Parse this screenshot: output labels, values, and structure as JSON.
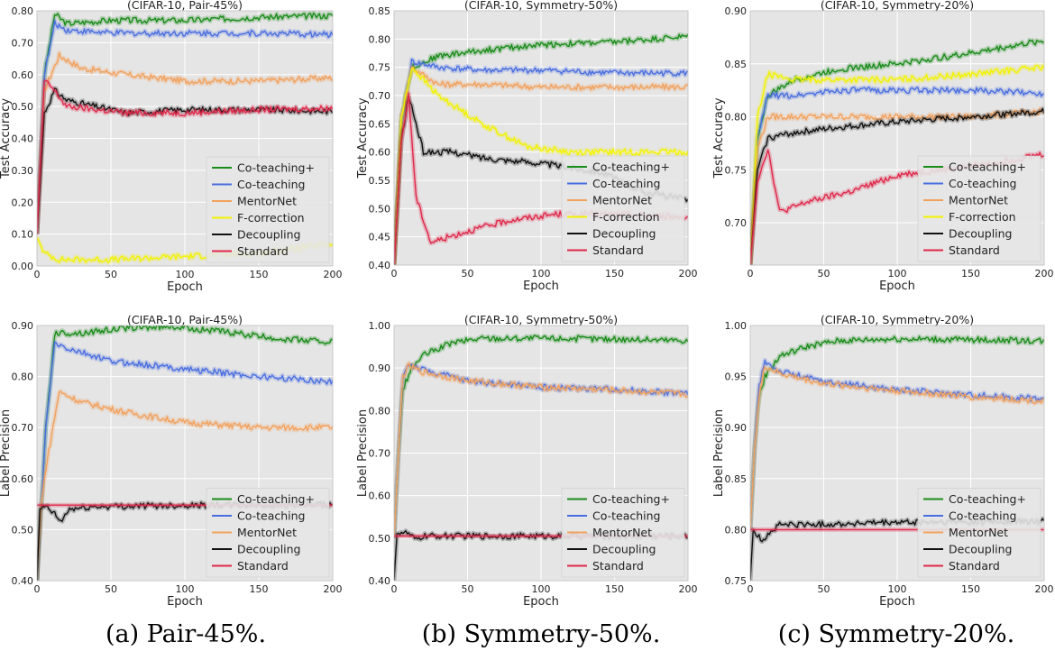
{
  "colors": {
    "Co-teaching+": "#1a8c1a",
    "Co-teaching": "#4a6ee0",
    "MentorNet": "#f2a15c",
    "F-correction": "#f2f200",
    "Decoupling": "#111111",
    "Standard": "#e0284a",
    "plot_bg": "#e5e5e5",
    "grid": "#ffffff"
  },
  "captions": [
    "(a) Pair-45%.",
    "(b) Symmetry-50%.",
    "(c) Symmetry-20%."
  ],
  "chart_data": [
    {
      "type": "line",
      "title": "(CIFAR-10, Pair-45%)",
      "xlabel": "Epoch",
      "ylabel": "Test Accuracy",
      "xlim": [
        0,
        200
      ],
      "ylim": [
        0.0,
        0.8
      ],
      "xticks": [
        "0",
        "50",
        "100",
        "150",
        "200"
      ],
      "yticks": [
        "0.00",
        "0.10",
        "0.20",
        "0.30",
        "0.40",
        "0.50",
        "0.60",
        "0.70",
        "0.80"
      ],
      "legend": "lower-right",
      "series": [
        {
          "name": "Co-teaching+",
          "x": [
            0,
            5,
            12,
            20,
            50,
            100,
            150,
            200
          ],
          "y": [
            0.1,
            0.6,
            0.79,
            0.76,
            0.77,
            0.77,
            0.78,
            0.785
          ]
        },
        {
          "name": "Co-teaching",
          "x": [
            0,
            5,
            12,
            20,
            50,
            100,
            150,
            200
          ],
          "y": [
            0.1,
            0.6,
            0.76,
            0.74,
            0.73,
            0.73,
            0.73,
            0.725
          ]
        },
        {
          "name": "MentorNet",
          "x": [
            0,
            5,
            15,
            30,
            60,
            100,
            150,
            200
          ],
          "y": [
            0.1,
            0.55,
            0.66,
            0.62,
            0.6,
            0.58,
            0.58,
            0.59
          ]
        },
        {
          "name": "F-correction",
          "x": [
            0,
            5,
            15,
            50,
            100,
            150,
            200
          ],
          "y": [
            0.09,
            0.04,
            0.02,
            0.02,
            0.03,
            0.04,
            0.07
          ]
        },
        {
          "name": "Decoupling",
          "x": [
            0,
            5,
            12,
            20,
            40,
            60,
            100,
            150,
            200
          ],
          "y": [
            0.1,
            0.48,
            0.55,
            0.52,
            0.5,
            0.48,
            0.49,
            0.49,
            0.485
          ]
        },
        {
          "name": "Standard",
          "x": [
            0,
            5,
            10,
            20,
            40,
            60,
            100,
            150,
            200
          ],
          "y": [
            0.1,
            0.58,
            0.56,
            0.5,
            0.49,
            0.48,
            0.48,
            0.49,
            0.495
          ]
        }
      ]
    },
    {
      "type": "line",
      "title": "(CIFAR-10, Symmetry-50%)",
      "xlabel": "Epoch",
      "ylabel": "Test Accuracy",
      "xlim": [
        0,
        200
      ],
      "ylim": [
        0.4,
        0.85
      ],
      "xticks": [
        "0",
        "50",
        "100",
        "150",
        "200"
      ],
      "yticks": [
        "0.40",
        "0.45",
        "0.50",
        "0.55",
        "0.60",
        "0.65",
        "0.70",
        "0.75",
        "0.80",
        "0.85"
      ],
      "legend": "lower-right",
      "series": [
        {
          "name": "Co-teaching+",
          "x": [
            0,
            5,
            12,
            30,
            60,
            100,
            150,
            200
          ],
          "y": [
            0.4,
            0.66,
            0.75,
            0.77,
            0.78,
            0.79,
            0.795,
            0.805
          ]
        },
        {
          "name": "Co-teaching",
          "x": [
            0,
            5,
            12,
            30,
            60,
            100,
            150,
            200
          ],
          "y": [
            0.4,
            0.66,
            0.76,
            0.75,
            0.745,
            0.745,
            0.74,
            0.74
          ]
        },
        {
          "name": "MentorNet",
          "x": [
            0,
            5,
            12,
            30,
            60,
            100,
            150,
            200
          ],
          "y": [
            0.4,
            0.66,
            0.75,
            0.72,
            0.72,
            0.715,
            0.715,
            0.715
          ]
        },
        {
          "name": "F-correction",
          "x": [
            0,
            5,
            12,
            30,
            60,
            90,
            120,
            200
          ],
          "y": [
            0.4,
            0.66,
            0.75,
            0.7,
            0.65,
            0.61,
            0.6,
            0.6
          ]
        },
        {
          "name": "Decoupling",
          "x": [
            0,
            5,
            10,
            20,
            40,
            60,
            100,
            140,
            170,
            200
          ],
          "y": [
            0.4,
            0.62,
            0.7,
            0.6,
            0.6,
            0.59,
            0.58,
            0.565,
            0.53,
            0.515
          ]
        },
        {
          "name": "Standard",
          "x": [
            0,
            5,
            10,
            15,
            25,
            50,
            80,
            110,
            150,
            200
          ],
          "y": [
            0.4,
            0.62,
            0.7,
            0.52,
            0.44,
            0.46,
            0.48,
            0.49,
            0.49,
            0.485
          ]
        }
      ]
    },
    {
      "type": "line",
      "title": "(CIFAR-10, Symmetry-20%)",
      "xlabel": "Epoch",
      "ylabel": "Test Accuracy",
      "xlim": [
        0,
        200
      ],
      "ylim": [
        0.66,
        0.9
      ],
      "xticks": [
        "0",
        "50",
        "100",
        "150",
        "200"
      ],
      "yticks": [
        "0.70",
        "0.75",
        "0.80",
        "0.85",
        "0.90"
      ],
      "legend": "lower-right",
      "series": [
        {
          "name": "Co-teaching+",
          "x": [
            0,
            5,
            12,
            30,
            60,
            100,
            150,
            200
          ],
          "y": [
            0.66,
            0.78,
            0.82,
            0.835,
            0.845,
            0.85,
            0.86,
            0.872
          ]
        },
        {
          "name": "Co-teaching",
          "x": [
            0,
            5,
            12,
            30,
            60,
            100,
            150,
            200
          ],
          "y": [
            0.66,
            0.78,
            0.82,
            0.82,
            0.825,
            0.825,
            0.825,
            0.822
          ]
        },
        {
          "name": "MentorNet",
          "x": [
            0,
            5,
            12,
            30,
            60,
            100,
            150,
            200
          ],
          "y": [
            0.66,
            0.77,
            0.8,
            0.8,
            0.8,
            0.8,
            0.8,
            0.805
          ]
        },
        {
          "name": "F-correction",
          "x": [
            0,
            5,
            12,
            30,
            60,
            100,
            150,
            200
          ],
          "y": [
            0.66,
            0.8,
            0.84,
            0.835,
            0.835,
            0.835,
            0.84,
            0.847
          ]
        },
        {
          "name": "Decoupling",
          "x": [
            0,
            5,
            12,
            30,
            60,
            100,
            150,
            200
          ],
          "y": [
            0.66,
            0.75,
            0.78,
            0.785,
            0.79,
            0.795,
            0.8,
            0.805
          ]
        },
        {
          "name": "Standard",
          "x": [
            0,
            5,
            12,
            20,
            40,
            70,
            100,
            130,
            160,
            200
          ],
          "y": [
            0.66,
            0.74,
            0.77,
            0.71,
            0.72,
            0.73,
            0.745,
            0.75,
            0.755,
            0.765
          ]
        }
      ]
    },
    {
      "type": "line",
      "title": "(CIFAR-10, Pair-45%)",
      "xlabel": "Epoch",
      "ylabel": "Label Precision",
      "xlim": [
        0,
        200
      ],
      "ylim": [
        0.4,
        0.9
      ],
      "xticks": [
        "0",
        "50",
        "100",
        "150",
        "200"
      ],
      "yticks": [
        "0.40",
        "0.50",
        "0.60",
        "0.70",
        "0.80",
        "0.90"
      ],
      "legend": "lower-right",
      "series": [
        {
          "name": "Co-teaching+",
          "x": [
            0,
            3,
            6,
            12,
            30,
            60,
            90,
            120,
            160,
            200
          ],
          "y": [
            0.4,
            0.55,
            0.7,
            0.885,
            0.885,
            0.895,
            0.898,
            0.89,
            0.875,
            0.868
          ]
        },
        {
          "name": "Co-teaching",
          "x": [
            0,
            3,
            6,
            12,
            20,
            50,
            100,
            150,
            200
          ],
          "y": [
            0.4,
            0.55,
            0.7,
            0.865,
            0.855,
            0.83,
            0.815,
            0.8,
            0.79
          ]
        },
        {
          "name": "MentorNet",
          "x": [
            0,
            3,
            6,
            15,
            30,
            60,
            100,
            150,
            200
          ],
          "y": [
            0.4,
            0.55,
            0.62,
            0.77,
            0.75,
            0.73,
            0.71,
            0.7,
            0.7
          ]
        },
        {
          "name": "Decoupling",
          "x": [
            0,
            2,
            6,
            12,
            16,
            22,
            40,
            100,
            200
          ],
          "y": [
            0.4,
            0.54,
            0.545,
            0.53,
            0.515,
            0.54,
            0.545,
            0.548,
            0.548
          ]
        },
        {
          "name": "Standard",
          "x": [
            0,
            200
          ],
          "y": [
            0.548,
            0.548
          ]
        }
      ]
    },
    {
      "type": "line",
      "title": "(CIFAR-10, Symmetry-50%)",
      "xlabel": "Epoch",
      "ylabel": "Label Precision",
      "xlim": [
        0,
        200
      ],
      "ylim": [
        0.4,
        1.0
      ],
      "xticks": [
        "0",
        "50",
        "100",
        "150",
        "200"
      ],
      "yticks": [
        "0.40",
        "0.50",
        "0.60",
        "0.70",
        "0.80",
        "0.90",
        "1.00"
      ],
      "legend": "lower-right",
      "series": [
        {
          "name": "Co-teaching+",
          "x": [
            0,
            3,
            6,
            12,
            20,
            40,
            60,
            100,
            150,
            200
          ],
          "y": [
            0.5,
            0.7,
            0.85,
            0.9,
            0.93,
            0.96,
            0.97,
            0.97,
            0.968,
            0.965
          ]
        },
        {
          "name": "Co-teaching",
          "x": [
            0,
            3,
            6,
            10,
            20,
            50,
            100,
            150,
            200
          ],
          "y": [
            0.5,
            0.7,
            0.88,
            0.91,
            0.895,
            0.87,
            0.855,
            0.85,
            0.84
          ]
        },
        {
          "name": "MentorNet",
          "x": [
            0,
            3,
            6,
            10,
            20,
            50,
            100,
            150,
            200
          ],
          "y": [
            0.5,
            0.7,
            0.88,
            0.905,
            0.89,
            0.87,
            0.855,
            0.848,
            0.838
          ]
        },
        {
          "name": "Decoupling",
          "x": [
            0,
            2,
            5,
            10,
            15,
            20,
            30,
            100,
            200
          ],
          "y": [
            0.4,
            0.51,
            0.515,
            0.51,
            0.495,
            0.505,
            0.505,
            0.505,
            0.505
          ]
        },
        {
          "name": "Standard",
          "x": [
            0,
            200
          ],
          "y": [
            0.505,
            0.505
          ]
        }
      ]
    },
    {
      "type": "line",
      "title": "(CIFAR-10, Symmetry-20%)",
      "xlabel": "Epoch",
      "ylabel": "Label Precision",
      "xlim": [
        0,
        200
      ],
      "ylim": [
        0.75,
        1.0
      ],
      "xticks": [
        "0",
        "50",
        "100",
        "150",
        "200"
      ],
      "yticks": [
        "0.75",
        "0.80",
        "0.85",
        "0.90",
        "0.95",
        "1.00"
      ],
      "legend": "lower-right",
      "series": [
        {
          "name": "Co-teaching+",
          "x": [
            0,
            3,
            6,
            10,
            20,
            40,
            60,
            100,
            150,
            200
          ],
          "y": [
            0.8,
            0.88,
            0.93,
            0.95,
            0.97,
            0.98,
            0.985,
            0.987,
            0.986,
            0.985
          ]
        },
        {
          "name": "Co-teaching",
          "x": [
            0,
            3,
            6,
            10,
            20,
            50,
            100,
            150,
            200
          ],
          "y": [
            0.8,
            0.88,
            0.94,
            0.965,
            0.955,
            0.945,
            0.937,
            0.932,
            0.928
          ]
        },
        {
          "name": "MentorNet",
          "x": [
            0,
            3,
            6,
            10,
            20,
            50,
            100,
            150,
            200
          ],
          "y": [
            0.8,
            0.88,
            0.93,
            0.96,
            0.953,
            0.943,
            0.936,
            0.93,
            0.926
          ]
        },
        {
          "name": "Decoupling",
          "x": [
            0,
            2,
            4,
            8,
            12,
            16,
            20,
            40,
            100,
            200
          ],
          "y": [
            0.75,
            0.8,
            0.795,
            0.79,
            0.795,
            0.8,
            0.805,
            0.805,
            0.807,
            0.808
          ]
        },
        {
          "name": "Standard",
          "x": [
            0,
            200
          ],
          "y": [
            0.8,
            0.8
          ]
        }
      ]
    }
  ]
}
